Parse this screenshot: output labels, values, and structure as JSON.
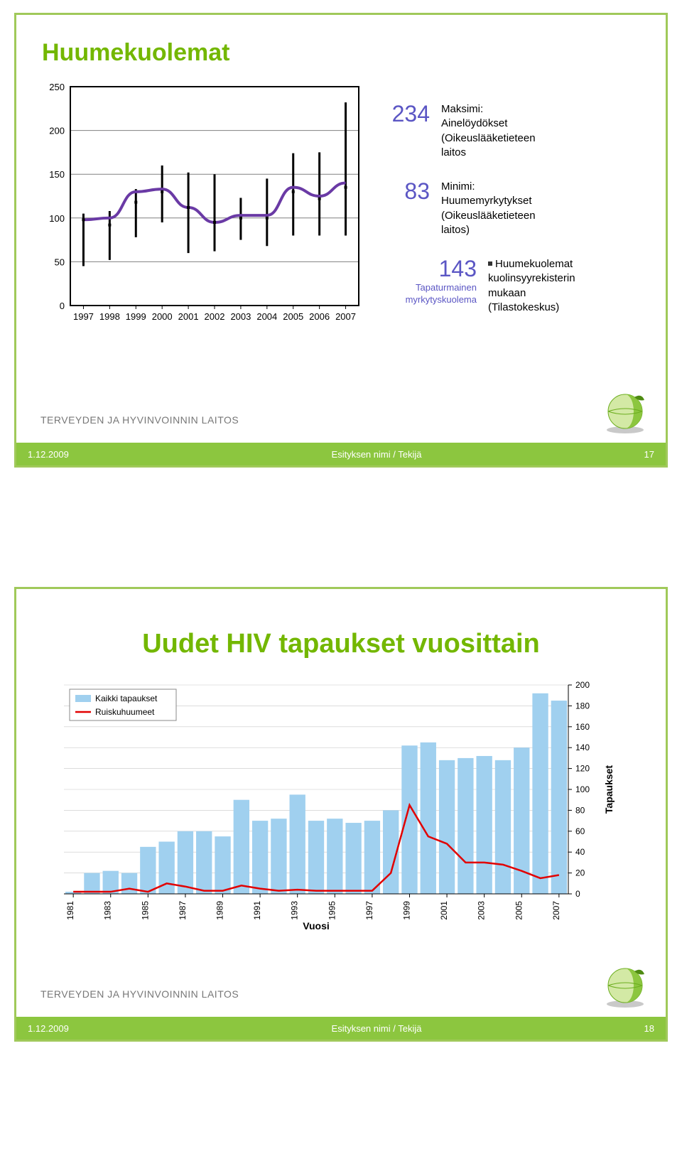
{
  "slide1": {
    "title": "Huumekuolemat",
    "chart": {
      "type": "line-with-range-bars",
      "years": [
        1997,
        1998,
        1999,
        2000,
        2001,
        2002,
        2003,
        2004,
        2005,
        2006,
        2007
      ],
      "line_values": [
        98,
        100,
        130,
        133,
        112,
        95,
        103,
        103,
        135,
        125,
        140
      ],
      "bar_low": [
        45,
        52,
        78,
        95,
        60,
        62,
        75,
        68,
        80,
        80,
        80
      ],
      "bar_high": [
        105,
        108,
        133,
        160,
        152,
        150,
        123,
        145,
        174,
        175,
        232
      ],
      "markers": [
        98,
        92,
        118,
        130,
        112,
        95,
        100,
        100,
        130,
        122,
        135
      ],
      "xlim": [
        1997,
        2007
      ],
      "ylim": [
        0,
        250
      ],
      "ytick_step": 50,
      "grid_lines": [
        0,
        50,
        100,
        150,
        200,
        250
      ],
      "plot_border_color": "#000000",
      "grid_color": "#808080",
      "line_color": "#6a3aa5",
      "line_width": 4,
      "bar_color": "#000000",
      "marker_color": "#000000",
      "marker_size": 4,
      "background_color": "#ffffff",
      "axis_fontsize": 13
    },
    "anno_max_num": "234",
    "anno_max_label": "Maksimi:",
    "anno_max_text1": "Ainelöydökset",
    "anno_max_text2": "(Oikeuslääketieteen",
    "anno_max_text3": "laitos",
    "anno_min_num": "83",
    "anno_min_label": "Minimi:",
    "anno_min_text1": "Huumemyrkytykset",
    "anno_min_text2": "(Oikeuslääketieteen",
    "anno_min_text3": "laitos)",
    "anno_center_num": "143",
    "anno_center_sub1": "Tapaturmainen",
    "anno_center_sub2": "myrkytyskuolema",
    "anno_center_bullet": "Huumekuolemat",
    "anno_center_text1": "kuolinsyyrekisterin",
    "anno_center_text2": "mukaan",
    "anno_center_text3": "(Tilastokeskus)"
  },
  "slide2": {
    "title": "Uudet HIV tapaukset vuosittain",
    "chart": {
      "type": "bar-line-combo",
      "legend1_label": "Kaikki tapaukset",
      "legend1_color": "#a0d0ef",
      "legend2_label": "Ruiskuhuumeet",
      "legend2_color": "#e20000",
      "x_label": "Vuosi",
      "y_label": "Tapaukset",
      "years": [
        1981,
        1982,
        1983,
        1984,
        1985,
        1986,
        1987,
        1988,
        1989,
        1990,
        1991,
        1992,
        1993,
        1994,
        1995,
        1996,
        1997,
        1998,
        1999,
        2000,
        2001,
        2002,
        2003,
        2004,
        2005,
        2006,
        2007
      ],
      "bar_values": [
        2,
        20,
        22,
        20,
        45,
        50,
        60,
        60,
        55,
        90,
        70,
        72,
        95,
        70,
        72,
        68,
        70,
        80,
        142,
        145,
        128,
        130,
        132,
        128,
        140,
        192,
        185
      ],
      "line_values": [
        2,
        2,
        2,
        5,
        2,
        10,
        7,
        3,
        3,
        8,
        5,
        3,
        4,
        3,
        3,
        3,
        3,
        20,
        85,
        55,
        48,
        30,
        30,
        28,
        22,
        15,
        18
      ],
      "ylim": [
        0,
        200
      ],
      "ytick_step": 20,
      "y_ticks": [
        0,
        20,
        40,
        60,
        80,
        100,
        120,
        140,
        160,
        180,
        200
      ],
      "x_ticks": [
        1981,
        1983,
        1985,
        1987,
        1989,
        1991,
        1993,
        1995,
        1997,
        1999,
        2001,
        2003,
        2005,
        2007
      ],
      "bar_color": "#a0d0ef",
      "line_color": "#e20000",
      "line_width": 2.5,
      "grid_color": "#c8c8c8",
      "y_axis_side": "right",
      "background_color": "#ffffff",
      "axis_font_color": "#000000",
      "axis_fontsize": 12,
      "axis_label_fontsize": 14,
      "axis_label_weight": "bold"
    }
  },
  "footer": {
    "org": "TERVEYDEN JA HYVINVOINNIN LAITOS",
    "date": "1.12.2009",
    "center": "Esityksen nimi / Tekijä",
    "page1": "17",
    "page2": "18"
  },
  "globe_colors": {
    "main": "#6cae1f",
    "leaf": "#4e8b12",
    "shadow": "#c9c9c9"
  }
}
